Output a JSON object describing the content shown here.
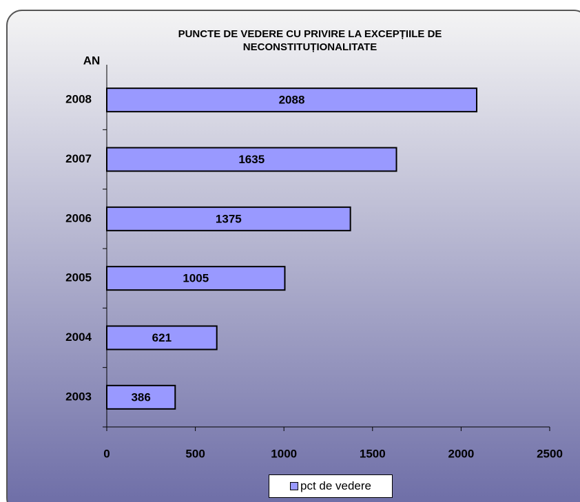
{
  "chart_data": {
    "type": "bar",
    "orientation": "horizontal",
    "title": "PUNCTE DE VEDERE CU PRIVIRE LA EXCEPȚIILE DE\nNECONSTITUȚIONALITATE",
    "y_label": "AN",
    "categories": [
      "2003",
      "2004",
      "2005",
      "2006",
      "2007",
      "2008"
    ],
    "series": [
      {
        "name": "pct de vedere",
        "color": "#9999ff",
        "values": [
          386,
          621,
          1005,
          1375,
          1635,
          2088
        ]
      }
    ],
    "xlim": [
      0,
      2500
    ],
    "xticks": [
      0,
      500,
      1000,
      1500,
      2000,
      2500
    ],
    "grid": false,
    "legend": "bottom"
  }
}
